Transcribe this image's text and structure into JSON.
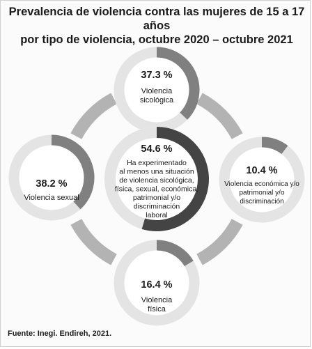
{
  "title_lines": [
    "Prevalencia de violencia contra las mujeres de 15 a 17 años",
    "por tipo de violencia, octubre 2020 – octubre 2021"
  ],
  "source": "Fuente: Inegi. Endireh, 2021.",
  "colors": {
    "ring_track": "#e4e4e4",
    "arc_outer": "#808080",
    "arc_center": "#444444",
    "connector": "#b3b3b3",
    "text": "#1a1a1a"
  },
  "chart_data": {
    "type": "pie",
    "style": "donut-progress-rings",
    "unit": "%",
    "center": {
      "value": 54.6,
      "value_label": "54.6 %",
      "label_lines": [
        "Ha experimentado",
        "al menos una situación",
        "de violencia sicológica,",
        "física, sexual, económica,",
        "patrimonial y/o",
        "discriminación",
        "laboral"
      ]
    },
    "items": [
      {
        "position": "top",
        "value": 37.3,
        "value_label": "37.3 %",
        "label_lines": [
          "Violencia",
          "sicológica"
        ]
      },
      {
        "position": "right",
        "value": 10.4,
        "value_label": "10.4 %",
        "label_lines": [
          "Violencia económica y/o",
          "patrimonial y/o",
          "discriminación"
        ]
      },
      {
        "position": "bottom",
        "value": 16.4,
        "value_label": "16.4 %",
        "label_lines": [
          "Violencia",
          "física"
        ]
      },
      {
        "position": "left",
        "value": 38.2,
        "value_label": "38.2 %",
        "label_lines": [
          "Violencia sexual"
        ]
      }
    ]
  }
}
